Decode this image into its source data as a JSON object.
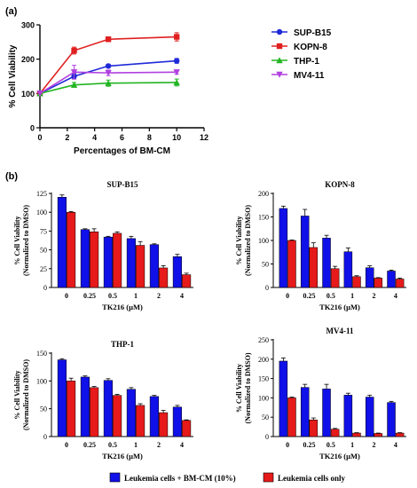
{
  "panel_labels": [
    "(a)",
    "(b)"
  ],
  "legend_b": {
    "bmcm_label": "Leukemia cells + BM-CM (10%)",
    "only_label": "Leukemia cells only",
    "bmcm_color": "#1010e8",
    "only_color": "#e61a1a"
  },
  "chart_data": [
    {
      "type": "line",
      "panel": "(a)",
      "title": "",
      "xlabel": "Percentages of BM-CM",
      "ylabel": "% Cell Viability",
      "xlim": [
        0,
        12
      ],
      "ylim": [
        0,
        300
      ],
      "xticks": [
        0,
        2,
        4,
        6,
        8,
        10,
        12
      ],
      "yticks": [
        0,
        100,
        200,
        300
      ],
      "x": [
        0,
        2.5,
        5,
        10
      ],
      "legend_position": "right",
      "series": [
        {
          "name": "SUP-B15",
          "color": "#1f2ad6",
          "marker": "circle",
          "values": [
            100,
            150,
            180,
            195
          ],
          "errors": [
            0,
            8,
            5,
            7
          ]
        },
        {
          "name": "KOPN-8",
          "color": "#e02020",
          "marker": "square",
          "values": [
            100,
            225,
            258,
            265
          ],
          "errors": [
            0,
            10,
            4,
            12
          ]
        },
        {
          "name": "THP-1",
          "color": "#22b522",
          "marker": "triangle-up",
          "values": [
            100,
            125,
            130,
            132
          ],
          "errors": [
            0,
            7,
            9,
            10
          ]
        },
        {
          "name": "MV4-11",
          "color": "#b040e0",
          "marker": "triangle-down",
          "values": [
            100,
            162,
            160,
            162
          ],
          "errors": [
            0,
            20,
            8,
            6
          ]
        }
      ]
    },
    {
      "type": "bar",
      "panel": "(b)",
      "title": "SUP-B15",
      "xlabel": "TK216 (μM)",
      "ylabel": "% Cell Viability",
      "ylabel2": "(Normalized to DMSO)",
      "categories": [
        "0",
        "0.25",
        "0.5",
        "1",
        "2",
        "4"
      ],
      "ylim": [
        0,
        125
      ],
      "yticks": [
        0,
        25,
        50,
        75,
        100,
        125
      ],
      "series": [
        {
          "name": "Leukemia cells + BM-CM (10%)",
          "values": [
            120,
            77,
            67,
            65,
            57,
            41
          ],
          "errors": [
            3,
            1,
            1,
            3,
            1,
            3
          ]
        },
        {
          "name": "Leukemia cells only",
          "values": [
            100,
            74,
            72,
            56,
            26,
            17
          ],
          "errors": [
            1,
            4,
            2,
            5,
            3,
            2
          ]
        }
      ]
    },
    {
      "type": "bar",
      "panel": "(b)",
      "title": "KOPN-8",
      "xlabel": "TK216 (μM)",
      "ylabel": "% Cell Viability",
      "ylabel2": "(Normalized to DMSO)",
      "categories": [
        "0",
        "0.25",
        "0.5",
        "1",
        "2",
        "4"
      ],
      "ylim": [
        0,
        200
      ],
      "yticks": [
        0,
        50,
        100,
        150,
        200
      ],
      "series": [
        {
          "name": "Leukemia cells + BM-CM (10%)",
          "values": [
            168,
            152,
            105,
            76,
            42,
            35
          ],
          "errors": [
            5,
            14,
            6,
            8,
            4,
            2
          ]
        },
        {
          "name": "Leukemia cells only",
          "values": [
            100,
            85,
            40,
            23,
            20,
            18
          ],
          "errors": [
            1,
            10,
            5,
            2,
            1,
            2
          ]
        }
      ]
    },
    {
      "type": "bar",
      "panel": "(b)",
      "title": "THP-1",
      "xlabel": "TK216 (μM)",
      "ylabel": "% Cell Viability",
      "ylabel2": "(Normalized to DMSO)",
      "categories": [
        "0",
        "0.25",
        "0.5",
        "1",
        "2",
        "4"
      ],
      "ylim": [
        0,
        150
      ],
      "yticks": [
        0,
        50,
        100,
        150
      ],
      "series": [
        {
          "name": "Leukemia cells + BM-CM (10%)",
          "values": [
            138,
            107,
            101,
            85,
            72,
            53
          ],
          "errors": [
            2,
            2,
            3,
            3,
            2,
            3
          ]
        },
        {
          "name": "Leukemia cells only",
          "values": [
            100,
            88,
            74,
            56,
            43,
            29
          ],
          "errors": [
            5,
            2,
            2,
            3,
            4,
            1
          ]
        }
      ]
    },
    {
      "type": "bar",
      "panel": "(b)",
      "title": "MV4-11",
      "xlabel": "TK216 (μM)",
      "ylabel": "% Cell Viability",
      "ylabel2": "(Normalized to DMSO)",
      "categories": [
        "0",
        "0.25",
        "0.5",
        "1",
        "2",
        "4"
      ],
      "ylim": [
        0,
        250
      ],
      "yticks": [
        0,
        50,
        100,
        150,
        200,
        250
      ],
      "series": [
        {
          "name": "Leukemia cells + BM-CM (10%)",
          "values": [
            195,
            127,
            123,
            107,
            102,
            88
          ],
          "errors": [
            8,
            8,
            12,
            5,
            5,
            3
          ]
        },
        {
          "name": "Leukemia cells only",
          "values": [
            100,
            43,
            19,
            9,
            8,
            9
          ],
          "errors": [
            2,
            5,
            2,
            1,
            1,
            1
          ]
        }
      ]
    }
  ]
}
